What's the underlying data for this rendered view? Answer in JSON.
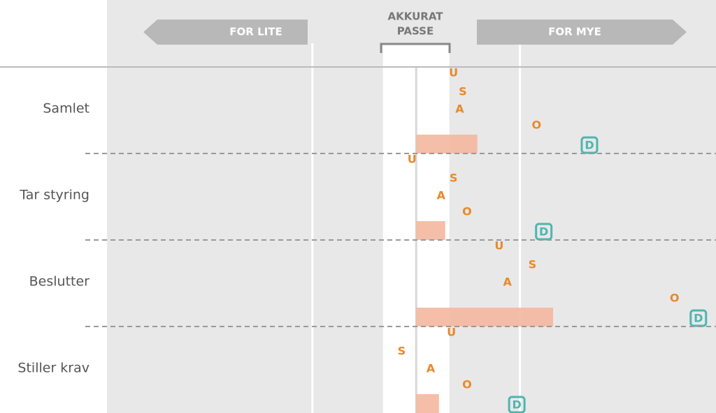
{
  "chart_data": {
    "type": "dot",
    "header": {
      "left": "FOR LITE",
      "middle": [
        "AKKURAT",
        "PASSE"
      ],
      "right": "FOR MYE"
    },
    "categories": [
      "Samlet",
      "Tar styring",
      "Beslutter",
      "Stiller krav"
    ],
    "series": [
      {
        "name": "U",
        "color": "#e8892a",
        "values": [
          0.36,
          -0.04,
          0.8,
          0.34
        ]
      },
      {
        "name": "S",
        "color": "#e8892a",
        "values": [
          0.45,
          0.36,
          1.12,
          -0.14
        ]
      },
      {
        "name": "A",
        "color": "#e8892a",
        "values": [
          0.42,
          0.24,
          0.88,
          0.14
        ]
      },
      {
        "name": "O",
        "color": "#e8892a",
        "values": [
          1.16,
          0.49,
          2.49,
          0.49
        ]
      },
      {
        "name": "D",
        "color": "#4fb5b0",
        "values": [
          1.67,
          1.23,
          2.72,
          0.97
        ],
        "boxed": true
      }
    ],
    "bar_values": [
      0.59,
      0.28,
      1.32,
      0.22
    ],
    "bar_color": "#f4b79e",
    "band": [
      -0.32,
      0.32
    ],
    "xlim": [
      -2.98,
      2.89
    ],
    "xticks": [
      -1,
      0,
      1
    ]
  }
}
